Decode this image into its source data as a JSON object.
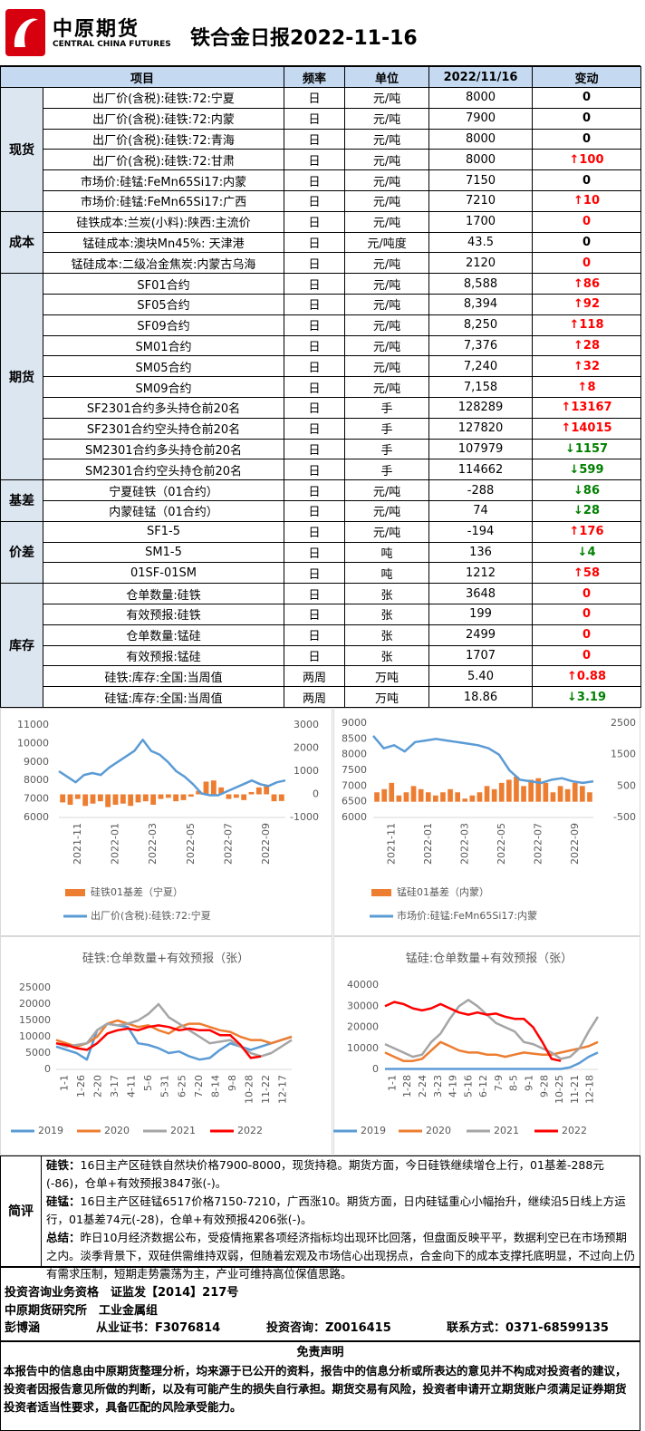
{
  "header": {
    "logo_cn": "中原期货",
    "logo_en": "CENTRAL CHINA FUTURES",
    "title": "铁合金日报2022-11-16"
  },
  "table": {
    "header": [
      "项目",
      "频率",
      "单位",
      "2022/11/16",
      "变动"
    ],
    "sections": [
      {
        "name": "现货",
        "rows": [
          {
            "item": "出厂价(含税):硅铁:72:宁夏",
            "freq": "日",
            "unit": "元/吨",
            "value": "8000",
            "change": "0",
            "arrow": "none",
            "color": "#000000"
          },
          {
            "item": "出厂价(含税):硅铁:72:内蒙",
            "freq": "日",
            "unit": "元/吨",
            "value": "7900",
            "change": "0",
            "arrow": "none",
            "color": "#000000"
          },
          {
            "item": "出厂价(含税):硅铁:72:青海",
            "freq": "日",
            "unit": "元/吨",
            "value": "8000",
            "change": "0",
            "arrow": "none",
            "color": "#000000"
          },
          {
            "item": "出厂价(含税):硅铁:72:甘肃",
            "freq": "日",
            "unit": "元/吨",
            "value": "8000",
            "change": "100",
            "arrow": "up",
            "color": "#ff0000"
          },
          {
            "item": "市场价:硅锰:FeMn65Si17:内蒙",
            "freq": "日",
            "unit": "元/吨",
            "value": "7150",
            "change": "0",
            "arrow": "none",
            "color": "#000000"
          },
          {
            "item": "市场价:硅锰:FeMn65Si17:广西",
            "freq": "日",
            "unit": "元/吨",
            "value": "7210",
            "change": "10",
            "arrow": "up",
            "color": "#ff0000"
          }
        ]
      },
      {
        "name": "成本",
        "rows": [
          {
            "item": "硅铁成本:兰炭(小料):陕西:主流价",
            "freq": "日",
            "unit": "元/吨",
            "value": "1700",
            "change": "0",
            "arrow": "none",
            "color": "#ff0000"
          },
          {
            "item": "锰硅成本:澳块Mn45%: 天津港",
            "freq": "日",
            "unit": "元/吨度",
            "value": "43.5",
            "change": "0",
            "arrow": "none",
            "color": "#000000"
          },
          {
            "item": "锰硅成本:二级冶金焦炭:内蒙古乌海",
            "freq": "日",
            "unit": "元/吨",
            "value": "2120",
            "change": "0",
            "arrow": "none",
            "color": "#ff0000"
          }
        ]
      },
      {
        "name": "期货",
        "rows": [
          {
            "item": "SF01合约",
            "freq": "日",
            "unit": "元/吨",
            "value": "8,588",
            "change": "86",
            "arrow": "up",
            "color": "#ff0000"
          },
          {
            "item": "SF05合约",
            "freq": "日",
            "unit": "元/吨",
            "value": "8,394",
            "change": "92",
            "arrow": "up",
            "color": "#ff0000"
          },
          {
            "item": "SF09合约",
            "freq": "日",
            "unit": "元/吨",
            "value": "8,250",
            "change": "118",
            "arrow": "up",
            "color": "#ff0000"
          },
          {
            "item": "SM01合约",
            "freq": "日",
            "unit": "元/吨",
            "value": "7,376",
            "change": "28",
            "arrow": "up",
            "color": "#ff0000"
          },
          {
            "item": "SM05合约",
            "freq": "日",
            "unit": "元/吨",
            "value": "7,240",
            "change": "32",
            "arrow": "up",
            "color": "#ff0000"
          },
          {
            "item": "SM09合约",
            "freq": "日",
            "unit": "元/吨",
            "value": "7,158",
            "change": "8",
            "arrow": "up",
            "color": "#ff0000"
          },
          {
            "item": "SF2301合约多头持仓前20名",
            "freq": "日",
            "unit": "手",
            "value": "128289",
            "change": "13167",
            "arrow": "up",
            "color": "#ff0000"
          },
          {
            "item": "SF2301合约空头持仓前20名",
            "freq": "日",
            "unit": "手",
            "value": "127820",
            "change": "14015",
            "arrow": "up",
            "color": "#ff0000"
          },
          {
            "item": "SM2301合约多头持仓前20名",
            "freq": "日",
            "unit": "手",
            "value": "107979",
            "change": "1157",
            "arrow": "down",
            "color": "#008000"
          },
          {
            "item": "SM2301合约空头持仓前20名",
            "freq": "日",
            "unit": "手",
            "value": "114662",
            "change": "599",
            "arrow": "down",
            "color": "#008000"
          }
        ]
      },
      {
        "name": "基差",
        "rows": [
          {
            "item": "宁夏硅铁（01合约）",
            "freq": "日",
            "unit": "元/吨",
            "value": "-288",
            "change": "86",
            "arrow": "down",
            "color": "#008000"
          },
          {
            "item": "内蒙硅锰（01合约）",
            "freq": "日",
            "unit": "元/吨",
            "value": "74",
            "change": "28",
            "arrow": "down",
            "color": "#008000"
          }
        ]
      },
      {
        "name": "价差",
        "rows": [
          {
            "item": "SF1-5",
            "freq": "日",
            "unit": "元/吨",
            "value": "-194",
            "change": "176",
            "arrow": "up",
            "color": "#ff0000"
          },
          {
            "item": "SM1-5",
            "freq": "日",
            "unit": "吨",
            "value": "136",
            "change": "4",
            "arrow": "down",
            "color": "#008000"
          },
          {
            "item": "01SF-01SM",
            "freq": "日",
            "unit": "吨",
            "value": "1212",
            "change": "58",
            "arrow": "up",
            "color": "#ff0000"
          }
        ]
      },
      {
        "name": "库存",
        "rows": [
          {
            "item": "仓单数量:硅铁",
            "freq": "日",
            "unit": "张",
            "value": "3648",
            "change": "0",
            "arrow": "none",
            "color": "#ff0000"
          },
          {
            "item": "有效预报:硅铁",
            "freq": "日",
            "unit": "张",
            "value": "199",
            "change": "0",
            "arrow": "none",
            "color": "#ff0000"
          },
          {
            "item": "仓单数量:锰硅",
            "freq": "日",
            "unit": "张",
            "value": "2499",
            "change": "0",
            "arrow": "none",
            "color": "#ff0000"
          },
          {
            "item": "有效预报:锰硅",
            "freq": "日",
            "unit": "张",
            "value": "1707",
            "change": "0",
            "arrow": "none",
            "color": "#ff0000"
          },
          {
            "item": "硅铁:库存:全国:当周值",
            "freq": "两周",
            "unit": "万吨",
            "value": "5.40",
            "change": "0.88",
            "arrow": "up",
            "color": "#ff0000"
          },
          {
            "item": "硅锰:库存:全国:当周值",
            "freq": "两周",
            "unit": "万吨",
            "value": "18.86",
            "change": "3.19",
            "arrow": "down",
            "color": "#008000"
          }
        ]
      }
    ]
  },
  "charts": [
    {
      "type": "combo",
      "ylim": [
        6000,
        11000
      ],
      "yticks": [
        6000,
        7000,
        8000,
        9000,
        10000,
        11000
      ],
      "y2lim": [
        -1000,
        3000
      ],
      "y2ticks": [
        -1000,
        0,
        1000,
        2000,
        3000
      ],
      "xticks": [
        "2021-11",
        "2022-01",
        "2022-03",
        "2022-05",
        "2022-07",
        "2022-09"
      ],
      "series": [
        {
          "name": "硅铁01基差（宁夏）",
          "type": "bar",
          "axis": "y2",
          "color": "#ed7d31",
          "values": [
            -350,
            -450,
            -200,
            -500,
            -400,
            -300,
            -550,
            -450,
            -400,
            -500,
            -350,
            -300,
            -450,
            -200,
            -150,
            -300,
            -250,
            -100,
            150,
            550,
            600,
            300,
            -200,
            -150,
            -250,
            100,
            300,
            400,
            -300,
            -288
          ]
        },
        {
          "name": "出厂价(含税):硅铁:72:宁夏",
          "type": "line",
          "axis": "y",
          "color": "#5b9bd5",
          "values": [
            8500,
            8200,
            7900,
            8300,
            8400,
            8300,
            8700,
            9000,
            9300,
            9600,
            10200,
            9600,
            9400,
            9000,
            8500,
            8200,
            7800,
            7300,
            7200,
            7200,
            7400,
            7600,
            7800,
            8000,
            7800,
            7700,
            7900,
            8000
          ]
        }
      ]
    },
    {
      "type": "combo",
      "ylim": [
        6000,
        9000
      ],
      "yticks": [
        6000,
        6500,
        7000,
        7500,
        8000,
        8500,
        9000
      ],
      "y2lim": [
        -500,
        2500
      ],
      "y2ticks": [
        -500,
        500,
        1500,
        2500
      ],
      "xticks": [
        "2021-11",
        "2022-01",
        "2022-03",
        "2022-05",
        "2022-07",
        "2022-09"
      ],
      "series": [
        {
          "name": "锰硅01基差（内蒙）",
          "type": "bar",
          "axis": "y2",
          "color": "#ed7d31",
          "values": [
            300,
            400,
            600,
            200,
            300,
            500,
            400,
            300,
            200,
            300,
            400,
            300,
            100,
            200,
            300,
            500,
            400,
            600,
            700,
            800,
            500,
            700,
            750,
            600,
            300,
            500,
            400,
            600,
            500,
            300
          ]
        },
        {
          "name": "市场价:硅锰:FeMn65Si17:内蒙",
          "type": "line",
          "axis": "y",
          "color": "#5b9bd5",
          "values": [
            8600,
            8200,
            8300,
            8100,
            8400,
            8450,
            8500,
            8450,
            8400,
            8350,
            8300,
            8200,
            8000,
            7500,
            7200,
            7150,
            7100,
            7200,
            7250,
            7150,
            7100,
            7150
          ]
        }
      ]
    },
    {
      "type": "line",
      "title": "硅铁:仓单数量+有效预报（张）",
      "ylim": [
        0,
        25000
      ],
      "yticks": [
        0,
        5000,
        10000,
        15000,
        20000,
        25000
      ],
      "xticks": [
        "1-1",
        "1-26",
        "2-20",
        "3-17",
        "4-11",
        "5-6",
        "5-31",
        "6-25",
        "7-20",
        "8-14",
        "9-8",
        "10-28",
        "11-22",
        "12-17"
      ],
      "series": [
        {
          "name": "2019",
          "type": "line",
          "color": "#5b9bd5",
          "values": [
            7000,
            6000,
            5000,
            3000,
            12000,
            14000,
            13500,
            13000,
            8000,
            7500,
            6500,
            5000,
            5500,
            4000,
            3000,
            3500,
            6000,
            8000,
            7000,
            6000,
            7000,
            8000,
            9000,
            10000
          ]
        },
        {
          "name": "2020",
          "type": "line",
          "color": "#ed7d31",
          "values": [
            9000,
            8000,
            7000,
            8000,
            10000,
            14000,
            15000,
            14000,
            13000,
            13500,
            12000,
            11000,
            13000,
            14000,
            14000,
            13000,
            12000,
            11500,
            10000,
            9000,
            9000,
            8000,
            9000,
            10000
          ]
        },
        {
          "name": "2021",
          "type": "line",
          "color": "#a5a5a5",
          "values": [
            8000,
            7000,
            7500,
            8000,
            12000,
            14000,
            13500,
            14000,
            15000,
            17000,
            20000,
            16000,
            14000,
            12000,
            10000,
            8000,
            8500,
            9000,
            7000,
            5000,
            4000,
            5000,
            7000,
            9000
          ]
        },
        {
          "name": "2022",
          "type": "line",
          "color": "#ff0000",
          "values": [
            8000,
            7500,
            6500,
            6000,
            8000,
            11000,
            12000,
            12500,
            12000,
            13000,
            13500,
            13000,
            12000,
            12500,
            12000,
            12000,
            10500,
            10500,
            7500,
            3500,
            4000,
            null,
            null,
            null
          ]
        }
      ]
    },
    {
      "type": "line",
      "title": "锰硅:仓单数量+有效预报（张）",
      "ylim": [
        0,
        40000
      ],
      "yticks": [
        0,
        10000,
        20000,
        30000,
        40000
      ],
      "xticks": [
        "1-1",
        "1-28",
        "2-24",
        "3-23",
        "4-19",
        "5-16",
        "6-12",
        "7-9",
        "8-5",
        "9-1",
        "9-28",
        "10-25",
        "11-21",
        "12-18"
      ],
      "series": [
        {
          "name": "2019",
          "type": "line",
          "color": "#5b9bd5",
          "values": [
            200,
            200,
            200,
            200,
            200,
            200,
            200,
            200,
            200,
            200,
            200,
            200,
            200,
            200,
            200,
            200,
            200,
            200,
            200,
            200,
            1000,
            3000,
            6000,
            8000
          ]
        },
        {
          "name": "2020",
          "type": "line",
          "color": "#ed7d31",
          "values": [
            8000,
            6000,
            4000,
            4000,
            5000,
            9000,
            13000,
            11000,
            9000,
            8000,
            8000,
            7000,
            7000,
            6000,
            7000,
            8000,
            7500,
            7000,
            7000,
            8000,
            9000,
            10000,
            11000,
            13000
          ]
        },
        {
          "name": "2021",
          "type": "line",
          "color": "#a5a5a5",
          "values": [
            12000,
            10000,
            8000,
            6000,
            7000,
            13000,
            17000,
            24000,
            30000,
            33000,
            30000,
            26000,
            22000,
            20000,
            18000,
            13000,
            12000,
            10000,
            8000,
            5000,
            6000,
            10000,
            18000,
            25000
          ]
        },
        {
          "name": "2022",
          "type": "line",
          "color": "#ff0000",
          "values": [
            30000,
            32000,
            31000,
            29000,
            28000,
            29000,
            31000,
            29000,
            27000,
            26000,
            27000,
            26000,
            26500,
            25000,
            24000,
            24000,
            20000,
            13000,
            5000,
            4000,
            null,
            null,
            null,
            null
          ]
        }
      ]
    }
  ],
  "comment": {
    "label": "简评",
    "paragraphs": [
      {
        "label": "硅铁：",
        "text": "16日主产区硅铁自然块价格7900-8000，现货持稳。期货方面，今日硅铁继续增仓上行，01基差-288元(-86)，仓单+有效预报3847张(-)。"
      },
      {
        "label": "硅锰：",
        "text": "16日主产区硅锰6517价格7150-7210，广西涨10。期货方面，日内硅锰重心小幅抬升，继续沿5日线上方运行，01基差74元(-28)，仓单+有效预报4206张(-)。"
      },
      {
        "label": "总结：",
        "text": "昨日10月经济数据公布，受疫情拖累各项经济指标均出现环比回落，但盘面反映平平，数据利空已在市场预期之内。淡季背景下，双硅供需维持双弱，但随着宏观及市场信心出现拐点，合金向下的成本支撑托底明显，不过向上仍有需求压制，短期走势震荡为主，产业可维持高位保值思路。"
      }
    ]
  },
  "footer": {
    "qualification": "投资咨询业务资格　证监发【2014】217号",
    "institute": "中原期货研究所　工业金属组",
    "author": "彭博涵",
    "license": "从业证书：F3076814",
    "consult": "投资咨询：Z0016415",
    "contact": "联系方式：0371-68599135"
  },
  "disclaimer": {
    "title": "免责声明",
    "text": "本报告中的信息由中原期货整理分析，均来源于已公开的资料，报告中的信息分析或所表达的意见并不构成对投资者的建议，投资者因报告意见所做的判断，以及有可能产生的损失自行承担。期货交易有风险，投资者申请开立期货账户须满足证券期货投资者适当性要求，具备匹配的风险承受能力。"
  }
}
